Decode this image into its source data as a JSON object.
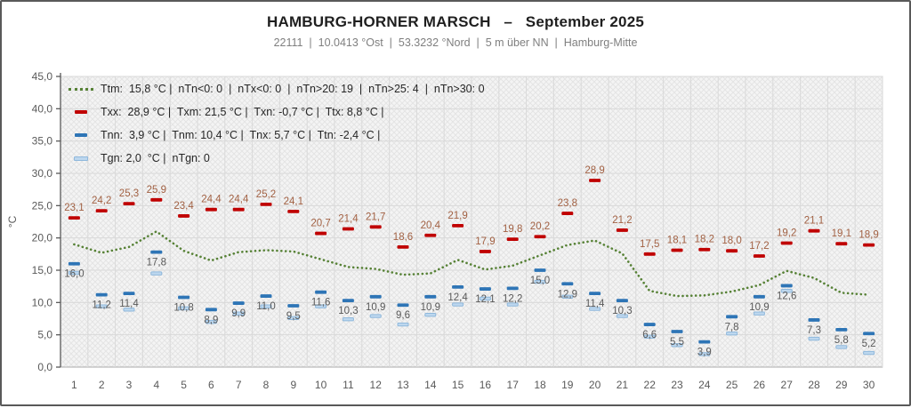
{
  "header": {
    "title": "HAMBURG-HORNER MARSCH   –   September 2025",
    "subtitle": "22111  |  10.0413 °Ost  |  53.3232 °Nord  |  5 m über NN  |  Hamburg-Mitte"
  },
  "legend": {
    "lines": [
      {
        "marker": "ttm-dotted-line",
        "text": "Ttm:  15,8 °C |  nTn<0: 0  |  nTx<0: 0  |  nTn>20: 19  |  nTn>25: 4  |  nTn>30: 0"
      },
      {
        "marker": "txx-dash",
        "text": "Txx:  28,9 °C |  Txm: 21,5 °C |  Txn: -0,7 °C |  Ttx: 8,8 °C |"
      },
      {
        "marker": "tnn-dash",
        "text": "Tnn:  3,9 °C |  Tnm: 10,4 °C |  Tnx: 5,7 °C |  Ttn: -2,4 °C |"
      },
      {
        "marker": "tgn-dash",
        "text": "Tgn: 2,0  °C |  nTgn: 0"
      }
    ]
  },
  "chart_data": {
    "type": "scatter",
    "title": "HAMBURG-HORNER MARSCH – September 2025",
    "xlabel": "",
    "ylabel": "°C",
    "ylim": [
      0,
      45
    ],
    "ytick_step": 5,
    "grid": true,
    "legend_position": "top-left-inside",
    "days": [
      1,
      2,
      3,
      4,
      5,
      6,
      7,
      8,
      9,
      10,
      11,
      12,
      13,
      14,
      15,
      16,
      17,
      18,
      19,
      20,
      21,
      22,
      23,
      24,
      25,
      26,
      27,
      28,
      29,
      30
    ],
    "series": [
      {
        "name": "Ttm",
        "style": "dotted-line",
        "color": "#568135",
        "labels": "none",
        "values": [
          19.0,
          17.7,
          18.6,
          21.0,
          18.0,
          16.5,
          17.8,
          18.1,
          17.9,
          16.7,
          15.5,
          15.2,
          14.3,
          14.5,
          16.6,
          15.1,
          15.7,
          17.3,
          18.9,
          19.6,
          17.6,
          11.8,
          11.0,
          11.1,
          11.7,
          12.7,
          14.9,
          13.8,
          11.5,
          11.2
        ]
      },
      {
        "name": "Txx",
        "style": "dash-marker",
        "color": "#c00000",
        "label_color": "#a26143",
        "labels": "above",
        "values": [
          23.1,
          24.2,
          25.3,
          25.9,
          23.4,
          24.4,
          24.4,
          25.2,
          24.1,
          20.7,
          21.4,
          21.7,
          18.6,
          20.4,
          21.9,
          17.9,
          19.8,
          20.2,
          23.8,
          28.9,
          21.2,
          17.5,
          18.1,
          18.2,
          18.0,
          17.2,
          19.2,
          21.1,
          19.1,
          18.9
        ]
      },
      {
        "name": "Tnn",
        "style": "dash-marker",
        "color": "#2e75b6",
        "label_color": "#595959",
        "labels": "below",
        "values": [
          16.0,
          11.2,
          11.4,
          17.8,
          10.8,
          8.9,
          9.9,
          11.0,
          9.5,
          11.6,
          10.3,
          10.9,
          9.6,
          10.9,
          12.4,
          12.1,
          12.2,
          15.0,
          12.9,
          11.4,
          10.3,
          6.6,
          5.5,
          3.9,
          7.8,
          10.9,
          12.6,
          7.3,
          5.8,
          5.2
        ]
      },
      {
        "name": "Tgn",
        "style": "dash-marker-outline",
        "color": "#bdd7ee",
        "stroke": "#8fb8dc",
        "labels": "none",
        "values": [
          14.6,
          9.4,
          8.9,
          14.5,
          9.1,
          7.0,
          8.3,
          9.4,
          7.6,
          9.4,
          7.4,
          7.9,
          6.6,
          8.1,
          9.7,
          10.6,
          9.7,
          13.2,
          10.9,
          9.0,
          7.9,
          4.7,
          3.4,
          2.0,
          5.2,
          8.3,
          11.8,
          4.4,
          3.1,
          2.2
        ]
      }
    ],
    "colors": {
      "grid": "#d9d9d9",
      "axis": "#595959",
      "tick_text": "#595959",
      "plot_bg": "#f4f4f4",
      "hatch": "#e4e4e4"
    }
  }
}
